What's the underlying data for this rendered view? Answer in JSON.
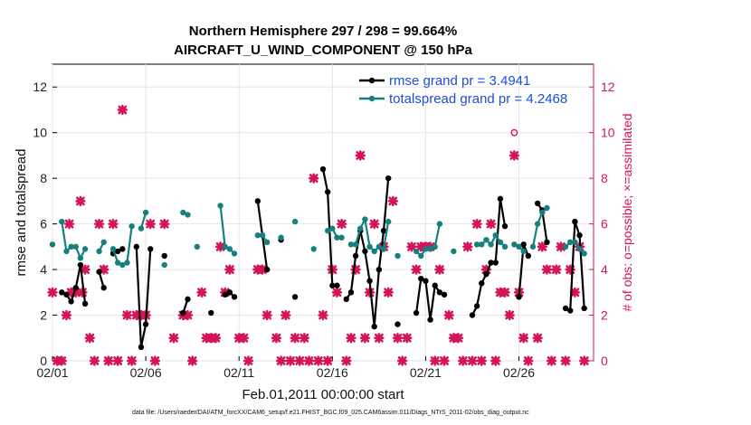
{
  "chart_data": {
    "type": "line",
    "title": "Northern Hemisphere 297 / 298 = 99.664%",
    "subtitle": "AIRCRAFT_U_WIND_COMPONENT @ 150 hPa",
    "xlabel": "Feb.01,2011 00:00:00 start",
    "ylabel": "rmse and totalspread",
    "ylabel_right": "# of obs: o=possible; ×=assimilated",
    "xlim": [
      0,
      29
    ],
    "ylim": [
      0,
      13
    ],
    "ylim_right": [
      0,
      13
    ],
    "x_ticks": [
      0,
      5,
      10,
      15,
      20,
      25
    ],
    "x_tick_labels": [
      "02/01",
      "02/06",
      "02/11",
      "02/16",
      "02/21",
      "02/26"
    ],
    "y_ticks": [
      0,
      2,
      4,
      6,
      8,
      10,
      12
    ],
    "y_tick_labels": [
      "0",
      "2",
      "4",
      "6",
      "8",
      "10",
      "12"
    ],
    "y_ticks_right": [
      0,
      2,
      4,
      6,
      8,
      10,
      12
    ],
    "y_tick_labels_right": [
      "0",
      "2",
      "4",
      "6",
      "8",
      "10",
      "12"
    ],
    "legend_position": "top-right",
    "series": [
      {
        "name": "rmse grand pr = 3.4941",
        "color": "#000000",
        "segments": [
          [
            [
              0.5,
              3.0
            ],
            [
              0.75,
              2.9
            ],
            [
              1.0,
              2.6
            ],
            [
              1.25,
              3.2
            ],
            [
              1.5,
              4.2
            ],
            [
              1.75,
              2.5
            ]
          ],
          [
            [
              2.5,
              3.9
            ],
            [
              2.75,
              3.2
            ]
          ],
          [
            [
              3.25,
              4.7
            ],
            [
              3.5,
              4.8
            ],
            [
              3.75,
              4.9
            ]
          ],
          [
            [
              4.5,
              5.0
            ],
            [
              4.75,
              0.6
            ],
            [
              5.0,
              1.6
            ],
            [
              5.25,
              4.9
            ]
          ],
          [
            [
              6.0,
              4.6
            ]
          ],
          [
            [
              7.0,
              2.1
            ],
            [
              7.25,
              2.7
            ]
          ],
          [
            [
              8.5,
              2.1
            ]
          ],
          [
            [
              9.25,
              2.9
            ],
            [
              9.5,
              3.0
            ],
            [
              9.75,
              2.8
            ]
          ],
          [
            [
              11.0,
              7.0
            ],
            [
              11.25,
              5.5
            ],
            [
              11.5,
              4.0
            ]
          ],
          [
            [
              12.25,
              5.3
            ]
          ],
          [
            [
              13.0,
              2.8
            ]
          ],
          [
            [
              14.5,
              8.4
            ],
            [
              14.75,
              7.4
            ],
            [
              15.0,
              3.3
            ],
            [
              15.25,
              3.3
            ]
          ],
          [
            [
              15.75,
              2.7
            ],
            [
              16.0,
              3.0
            ],
            [
              16.25,
              4.6
            ],
            [
              16.5,
              5.7
            ],
            [
              16.75,
              4.8
            ],
            [
              17.0,
              3.5
            ],
            [
              17.25,
              1.5
            ],
            [
              17.5,
              4.0
            ],
            [
              17.75,
              5.7
            ],
            [
              18.0,
              8.0
            ]
          ],
          [
            [
              18.5,
              1.6
            ]
          ],
          [
            [
              19.5,
              2.1
            ],
            [
              19.75,
              3.6
            ],
            [
              20.0,
              3.5
            ],
            [
              20.25,
              1.8
            ],
            [
              20.5,
              3.3
            ],
            [
              20.75,
              3.0
            ],
            [
              21.0,
              2.9
            ]
          ],
          [
            [
              22.5,
              2.0
            ],
            [
              22.75,
              2.4
            ],
            [
              23.0,
              3.4
            ],
            [
              23.25,
              3.8
            ],
            [
              23.5,
              4.3
            ],
            [
              23.75,
              4.3
            ],
            [
              24.0,
              7.1
            ],
            [
              24.25,
              5.9
            ]
          ],
          [
            [
              25.0,
              2.8
            ],
            [
              25.25,
              5.1
            ],
            [
              25.5,
              4.6
            ]
          ],
          [
            [
              26.0,
              6.9
            ],
            [
              26.25,
              6.6
            ],
            [
              26.5,
              5.2
            ]
          ],
          [
            [
              27.5,
              2.3
            ],
            [
              27.75,
              2.2
            ],
            [
              28.0,
              6.1
            ],
            [
              28.25,
              5.5
            ],
            [
              28.5,
              2.3
            ]
          ]
        ]
      },
      {
        "name": "totalspread grand pr = 4.2468",
        "color": "#17807e",
        "segments": [
          [
            [
              0.0,
              5.1
            ]
          ],
          [
            [
              0.5,
              6.1
            ],
            [
              0.75,
              4.8
            ],
            [
              1.0,
              5.0
            ],
            [
              1.25,
              5.0
            ],
            [
              1.5,
              4.5
            ],
            [
              1.75,
              4.9
            ]
          ],
          [
            [
              2.5,
              4.8
            ],
            [
              2.75,
              5.2
            ]
          ],
          [
            [
              3.25,
              4.9
            ],
            [
              3.5,
              4.3
            ],
            [
              3.75,
              4.2
            ],
            [
              4.0,
              4.3
            ],
            [
              4.25,
              5.9
            ]
          ],
          [
            [
              4.75,
              5.8
            ],
            [
              5.0,
              6.5
            ]
          ],
          [
            [
              6.0,
              4.2
            ]
          ],
          [
            [
              7.0,
              6.5
            ],
            [
              7.25,
              6.4
            ]
          ],
          [
            [
              7.75,
              5.0
            ]
          ],
          [
            [
              9.0,
              6.8
            ],
            [
              9.25,
              5.0
            ],
            [
              9.5,
              4.9
            ],
            [
              9.75,
              4.7
            ]
          ],
          [
            [
              11.0,
              5.5
            ],
            [
              11.25,
              5.5
            ],
            [
              11.5,
              5.2
            ]
          ],
          [
            [
              12.25,
              5.4
            ]
          ],
          [
            [
              13.0,
              6.1
            ]
          ],
          [
            [
              14.0,
              4.9
            ]
          ],
          [
            [
              14.75,
              5.7
            ],
            [
              15.0,
              5.8
            ],
            [
              15.25,
              5.4
            ],
            [
              15.5,
              5.4
            ]
          ],
          [
            [
              16.0,
              5.1
            ],
            [
              16.25,
              5.1
            ],
            [
              16.5,
              5.8
            ],
            [
              16.75,
              6.2
            ],
            [
              17.0,
              5.0
            ],
            [
              17.25,
              4.8
            ],
            [
              17.5,
              5.0
            ],
            [
              17.75,
              4.9
            ],
            [
              18.0,
              6.1
            ]
          ],
          [
            [
              18.5,
              4.6
            ]
          ],
          [
            [
              19.5,
              4.8
            ],
            [
              19.75,
              4.6
            ],
            [
              20.0,
              4.9
            ],
            [
              20.25,
              4.9
            ],
            [
              20.5,
              5.0
            ],
            [
              20.75,
              6.0
            ]
          ],
          [
            [
              21.5,
              4.8
            ]
          ],
          [
            [
              22.75,
              5.1
            ],
            [
              23.0,
              5.1
            ],
            [
              23.25,
              5.3
            ],
            [
              23.5,
              5.1
            ],
            [
              23.75,
              5.5
            ],
            [
              24.0,
              5.2
            ],
            [
              24.25,
              5.0
            ]
          ],
          [
            [
              24.75,
              5.1
            ],
            [
              25.0,
              5.0
            ],
            [
              25.25,
              4.8
            ]
          ],
          [
            [
              25.75,
              5.0
            ],
            [
              26.0,
              6.0
            ],
            [
              26.25,
              6.5
            ],
            [
              26.5,
              6.7
            ]
          ],
          [
            [
              27.5,
              5.0
            ],
            [
              27.75,
              5.2
            ],
            [
              28.0,
              5.2
            ],
            [
              28.25,
              4.9
            ],
            [
              28.5,
              4.7
            ]
          ]
        ]
      },
      {
        "name": "assimilated observations",
        "marker": "x",
        "color": "#d4145a",
        "axis": "right",
        "points": [
          [
            0.0,
            3
          ],
          [
            0.25,
            0
          ],
          [
            0.5,
            0
          ],
          [
            0.75,
            2
          ],
          [
            0.9,
            6
          ],
          [
            1.0,
            3
          ],
          [
            1.25,
            3
          ],
          [
            1.5,
            7
          ],
          [
            1.6,
            3
          ],
          [
            1.75,
            4
          ],
          [
            2.0,
            1
          ],
          [
            2.25,
            0
          ],
          [
            2.5,
            6
          ],
          [
            2.75,
            4
          ],
          [
            3.0,
            0
          ],
          [
            3.25,
            6
          ],
          [
            3.5,
            0
          ],
          [
            3.75,
            11
          ],
          [
            4.0,
            2
          ],
          [
            4.25,
            0
          ],
          [
            4.5,
            2
          ],
          [
            4.75,
            2
          ],
          [
            5.0,
            2
          ],
          [
            5.25,
            6
          ],
          [
            5.5,
            0
          ],
          [
            6.0,
            6
          ],
          [
            6.5,
            1
          ],
          [
            7.0,
            2
          ],
          [
            7.25,
            2
          ],
          [
            7.5,
            0
          ],
          [
            8.0,
            3
          ],
          [
            8.25,
            1
          ],
          [
            8.5,
            1
          ],
          [
            8.75,
            1
          ],
          [
            9.0,
            5
          ],
          [
            9.25,
            3
          ],
          [
            9.5,
            4
          ],
          [
            10.0,
            1
          ],
          [
            10.25,
            1
          ],
          [
            10.5,
            0
          ],
          [
            11.0,
            4
          ],
          [
            11.25,
            4
          ],
          [
            11.5,
            2
          ],
          [
            12.0,
            1
          ],
          [
            12.25,
            0
          ],
          [
            12.5,
            2
          ],
          [
            12.75,
            0
          ],
          [
            13.0,
            1
          ],
          [
            13.25,
            0
          ],
          [
            13.5,
            1
          ],
          [
            13.75,
            0
          ],
          [
            14.0,
            8
          ],
          [
            14.25,
            0
          ],
          [
            14.5,
            2
          ],
          [
            14.75,
            0
          ],
          [
            15.0,
            4
          ],
          [
            15.25,
            3
          ],
          [
            15.5,
            6
          ],
          [
            15.75,
            0
          ],
          [
            16.0,
            1
          ],
          [
            16.25,
            4
          ],
          [
            16.5,
            9
          ],
          [
            16.75,
            1
          ],
          [
            17.0,
            3
          ],
          [
            17.25,
            6
          ],
          [
            17.5,
            1
          ],
          [
            17.75,
            5
          ],
          [
            18.0,
            3
          ],
          [
            18.25,
            7
          ],
          [
            18.5,
            1
          ],
          [
            18.75,
            0
          ],
          [
            19.0,
            1
          ],
          [
            19.25,
            5
          ],
          [
            19.5,
            4
          ],
          [
            19.75,
            5
          ],
          [
            20.0,
            5
          ],
          [
            20.25,
            5
          ],
          [
            20.5,
            0
          ],
          [
            20.75,
            4
          ],
          [
            21.0,
            0
          ],
          [
            21.25,
            2
          ],
          [
            21.5,
            1
          ],
          [
            21.75,
            1
          ],
          [
            22.0,
            0
          ],
          [
            22.25,
            5
          ],
          [
            22.5,
            0
          ],
          [
            22.75,
            6
          ],
          [
            23.0,
            0
          ],
          [
            23.25,
            4
          ],
          [
            23.5,
            6
          ],
          [
            23.75,
            0
          ],
          [
            24.0,
            3
          ],
          [
            24.25,
            3
          ],
          [
            24.5,
            2
          ],
          [
            24.75,
            9
          ],
          [
            25.0,
            3
          ],
          [
            25.25,
            1
          ],
          [
            25.5,
            0
          ],
          [
            26.0,
            1
          ],
          [
            26.25,
            5
          ],
          [
            26.5,
            4
          ],
          [
            26.75,
            0
          ],
          [
            27.0,
            4
          ],
          [
            27.25,
            5
          ],
          [
            27.5,
            0
          ],
          [
            27.75,
            4
          ],
          [
            28.0,
            3
          ],
          [
            28.25,
            5
          ],
          [
            28.5,
            0
          ]
        ]
      },
      {
        "name": "possible observations",
        "marker": "o",
        "color": "#d4145a",
        "axis": "right",
        "points": [
          [
            24.75,
            10
          ]
        ]
      }
    ]
  },
  "footer": "data file: /Users/raeder/DAI/ATM_forcXX/CAM6_setup/f.e21.FHIST_BGC.f09_025.CAM6assim.011/Diags_NTrS_2011-02/obs_diag_output.nc"
}
